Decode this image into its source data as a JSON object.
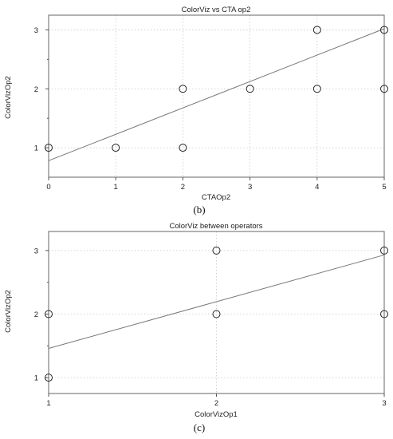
{
  "chart_data": [
    {
      "type": "scatter",
      "title": "ColorViz  vs CTA op2",
      "xlabel": "CTAOp2",
      "ylabel": "ColorVizOp2",
      "caption": "(b)",
      "xlim": [
        0,
        5
      ],
      "ylim": [
        0.5,
        3.25
      ],
      "xticks": [
        0,
        1,
        2,
        3,
        4,
        5
      ],
      "yticks": [
        1,
        2,
        3
      ],
      "x_tick_labels": [
        "0",
        "1",
        "2",
        "3",
        "4",
        "5"
      ],
      "y_tick_labels": [
        "1",
        "2",
        "3"
      ],
      "x_grid": [
        1,
        2,
        3,
        4
      ],
      "y_grid": [
        1,
        2,
        3
      ],
      "grid": true,
      "points": [
        {
          "x": 0,
          "y": 1
        },
        {
          "x": 1,
          "y": 1
        },
        {
          "x": 2,
          "y": 1
        },
        {
          "x": 2,
          "y": 2
        },
        {
          "x": 3,
          "y": 2
        },
        {
          "x": 4,
          "y": 2
        },
        {
          "x": 4,
          "y": 3
        },
        {
          "x": 5,
          "y": 2
        },
        {
          "x": 5,
          "y": 3
        }
      ],
      "fit_line": {
        "x": [
          0,
          5
        ],
        "y": [
          0.78,
          3.02
        ]
      }
    },
    {
      "type": "scatter",
      "title": "ColorViz  between operators",
      "xlabel": "ColorVizOp1",
      "ylabel": "ColorVizOp2",
      "caption": "(c)",
      "xlim": [
        1,
        3
      ],
      "ylim": [
        0.75,
        3.3
      ],
      "xticks": [
        1,
        2,
        3
      ],
      "yticks": [
        1,
        2,
        3
      ],
      "x_tick_labels": [
        "1",
        "2",
        "3"
      ],
      "y_tick_labels": [
        "1",
        "2",
        "3"
      ],
      "x_grid": [
        2
      ],
      "y_grid": [
        1,
        2,
        3
      ],
      "grid": true,
      "points": [
        {
          "x": 1,
          "y": 1
        },
        {
          "x": 1,
          "y": 2
        },
        {
          "x": 2,
          "y": 2
        },
        {
          "x": 2,
          "y": 3
        },
        {
          "x": 3,
          "y": 2
        },
        {
          "x": 3,
          "y": 3
        }
      ],
      "fit_line": {
        "x": [
          1,
          3
        ],
        "y": [
          1.46,
          2.93
        ]
      }
    }
  ]
}
